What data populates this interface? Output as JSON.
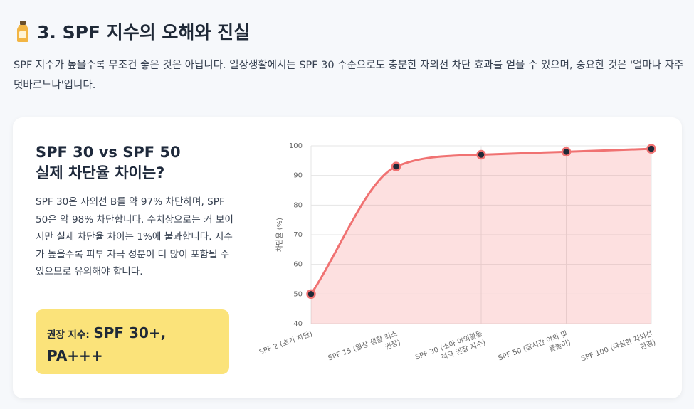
{
  "header": {
    "title": "3. SPF 지수의 오해와 진실",
    "description": "SPF 지수가 높을수록 무조건 좋은 것은 아닙니다. 일상생활에서는 SPF 30 수준으로도 충분한 자외선 차단 효과를 얻을 수 있으며, 중요한 것은 '얼마나 자주 덧바르느냐'입니다."
  },
  "card": {
    "title_lines": [
      "SPF 30 vs SPF 50",
      "실제 차단율 차이는?"
    ],
    "body": "SPF 30은 자외선 B를 약 97% 차단하며, SPF 50은 약 98% 차단합니다. 수치상으로는 커 보이지만 실제 차단율 차이는 1%에 불과합니다. 지수가 높을수록 피부 자극 성분이 더 많이 포함될 수 있으므로 유의해야 합니다.",
    "recommendation": {
      "label": "권장 지수:",
      "value": "SPF 30+, PA+++"
    }
  },
  "chart_data": {
    "type": "line",
    "y_label": "차단율 (%)",
    "categories": [
      [
        "SPF 2 (초기 차단)"
      ],
      [
        "SPF 15 (일상 생활 최소",
        "권장)"
      ],
      [
        "SPF 30 (소아 야외활동",
        "적극 권장 지수)"
      ],
      [
        "SPF 50 (장시간 야외 및",
        "물놀이)"
      ],
      [
        "SPF 100 (극심한 자외선",
        "환경)"
      ]
    ],
    "values": [
      50,
      93,
      97,
      98,
      99
    ],
    "ylim": [
      40,
      100
    ],
    "yticks": [
      40,
      50,
      60,
      70,
      80,
      90,
      100
    ],
    "color": "#f07272",
    "fill": "rgba(248,113,113,0.22)",
    "point_color": "#1f2937",
    "grid": true
  }
}
